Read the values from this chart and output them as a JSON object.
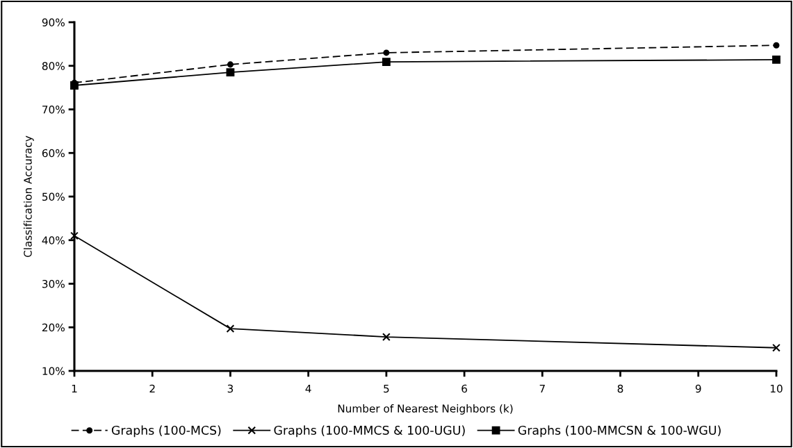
{
  "chart_data": {
    "type": "line",
    "xlabel": "Number of Nearest Neighbors (k)",
    "ylabel": "Classification Accuracy",
    "x": [
      1,
      3,
      5,
      10
    ],
    "series": [
      {
        "name": "Graphs (100-MCS)",
        "color": "#000000",
        "values": [
          76.1,
          80.3,
          83.0,
          84.7
        ],
        "marker": "circle",
        "line_style": "dashed"
      },
      {
        "name": "Graphs (100-MMCS & 100-UGU)",
        "color": "#000000",
        "values": [
          41.0,
          19.7,
          17.8,
          15.3
        ],
        "marker": "cross",
        "line_style": "solid"
      },
      {
        "name": "Graphs (100-MMCSN & 100-WGU)",
        "color": "#000000",
        "values": [
          75.5,
          78.5,
          80.9,
          81.4
        ],
        "marker": "square",
        "line_style": "solid"
      }
    ],
    "xlim": [
      1,
      10
    ],
    "xticks": [
      1,
      2,
      3,
      4,
      5,
      6,
      7,
      8,
      9,
      10
    ],
    "ylim": [
      10,
      90
    ],
    "yticks": [
      {
        "value": 10,
        "label": "10%"
      },
      {
        "value": 20,
        "label": "20%"
      },
      {
        "value": 30,
        "label": "30%"
      },
      {
        "value": 40,
        "label": "40%"
      },
      {
        "value": 50,
        "label": "50%"
      },
      {
        "value": 60,
        "label": "60%"
      },
      {
        "value": 70,
        "label": "70%"
      },
      {
        "value": 80,
        "label": "80%"
      },
      {
        "value": 90,
        "label": "90%"
      }
    ],
    "grid": false,
    "legend": "bottom"
  }
}
